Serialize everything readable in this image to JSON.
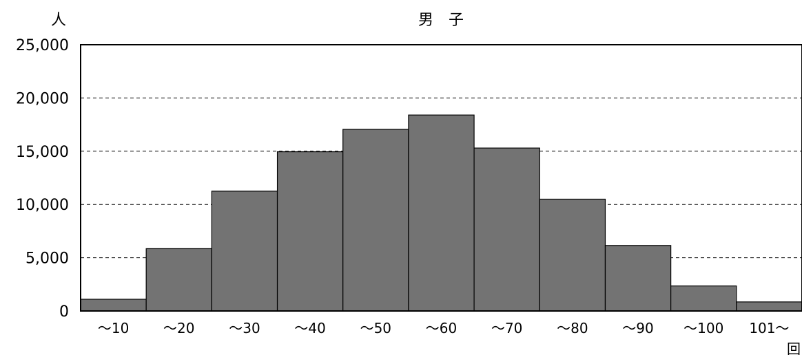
{
  "chart_data": {
    "type": "bar",
    "title": "男　子",
    "ylabel": "人",
    "xlabel": "回",
    "categories": [
      "～10",
      "～20",
      "～30",
      "～40",
      "～50",
      "～60",
      "～70",
      "～80",
      "～90",
      "～100",
      "101～"
    ],
    "values": [
      1100,
      5850,
      11250,
      14950,
      17050,
      18400,
      15300,
      10500,
      6150,
      2350,
      850
    ],
    "ylim": [
      0,
      25000
    ],
    "yticks": [
      0,
      5000,
      10000,
      15000,
      20000,
      25000
    ],
    "ytick_labels": [
      "0",
      "5,000",
      "10,000",
      "15,000",
      "20,000",
      "25,000"
    ],
    "grid": "horizontal dashed",
    "bar_color": "#737373",
    "bar_edge_color": "#000000"
  }
}
